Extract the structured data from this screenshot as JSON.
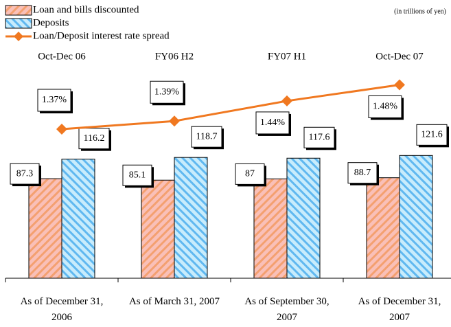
{
  "chart_data": {
    "type": "bar-line",
    "note": "(in trillions of yen)",
    "period_labels": [
      "Oct-Dec 06",
      "FY06 H2",
      "FY07 H1",
      "Oct-Dec 07"
    ],
    "categories": [
      "As of December 31, 2006",
      "As of March 31, 2007",
      "As of September 30, 2007",
      "As of December 31, 2007"
    ],
    "ylim": [
      -60,
      250
    ],
    "y2lim": [
      1.0,
      1.52
    ],
    "series": [
      {
        "name": "Loan and bills discounted",
        "type": "bar",
        "color": "#f9c0b8",
        "stripe": "#f4a070",
        "values": [
          87.3,
          85.1,
          87.0,
          88.7
        ]
      },
      {
        "name": "Deposits",
        "type": "bar",
        "color": "#c8ecfc",
        "stripe": "#60b8f0",
        "values": [
          116.2,
          118.7,
          117.6,
          121.6
        ]
      },
      {
        "name": "Loan/Deposit interest rate spread",
        "type": "line",
        "axis": "y2",
        "color": "#f07820",
        "values": [
          1.37,
          1.39,
          1.44,
          1.48
        ],
        "value_labels": [
          "1.37%",
          "1.39%",
          "1.44%",
          "1.48%"
        ]
      }
    ]
  }
}
